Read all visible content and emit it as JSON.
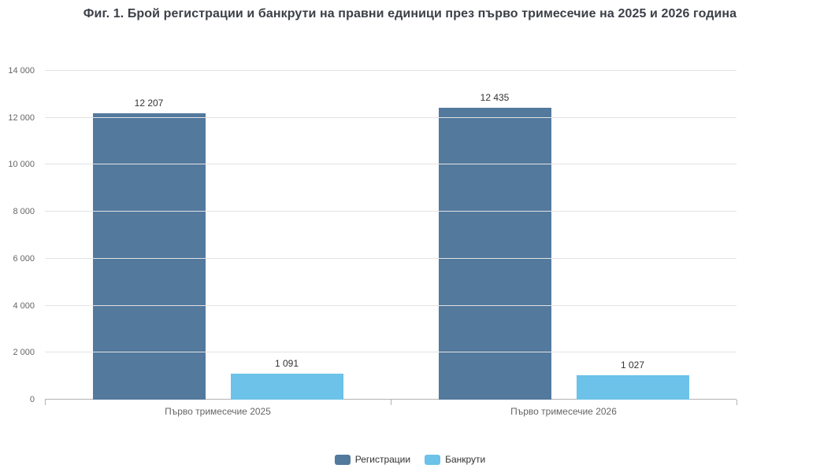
{
  "chart_data": {
    "type": "bar",
    "title": "Фиг. 1. Брой регистрации и банкрути на правни единици през първо тримесечие на 2025 и 2026 година",
    "categories": [
      "Първо тримесечие 2025",
      "Първо тримесечие 2026"
    ],
    "series": [
      {
        "name": "Регистрации",
        "color": "#53799d",
        "values": [
          12207,
          12435
        ],
        "value_labels": [
          "12 207",
          "12 435"
        ]
      },
      {
        "name": "Банкрути",
        "color": "#6cc2e8",
        "values": [
          1091,
          1027
        ],
        "value_labels": [
          "1 091",
          "1 027"
        ]
      }
    ],
    "ylim": [
      0,
      14000
    ],
    "yticks": [
      0,
      2000,
      4000,
      6000,
      8000,
      10000,
      12000,
      14000
    ],
    "ytick_labels": [
      "0",
      "2 000",
      "4 000",
      "6 000",
      "8 000",
      "10 000",
      "12 000",
      "14 000"
    ],
    "grid": true,
    "legend_position": "bottom",
    "colors": {
      "grid": "#e3e3e3",
      "axis": "#b3b3b3",
      "tick_text": "#666666",
      "value_text": "#333333"
    }
  }
}
